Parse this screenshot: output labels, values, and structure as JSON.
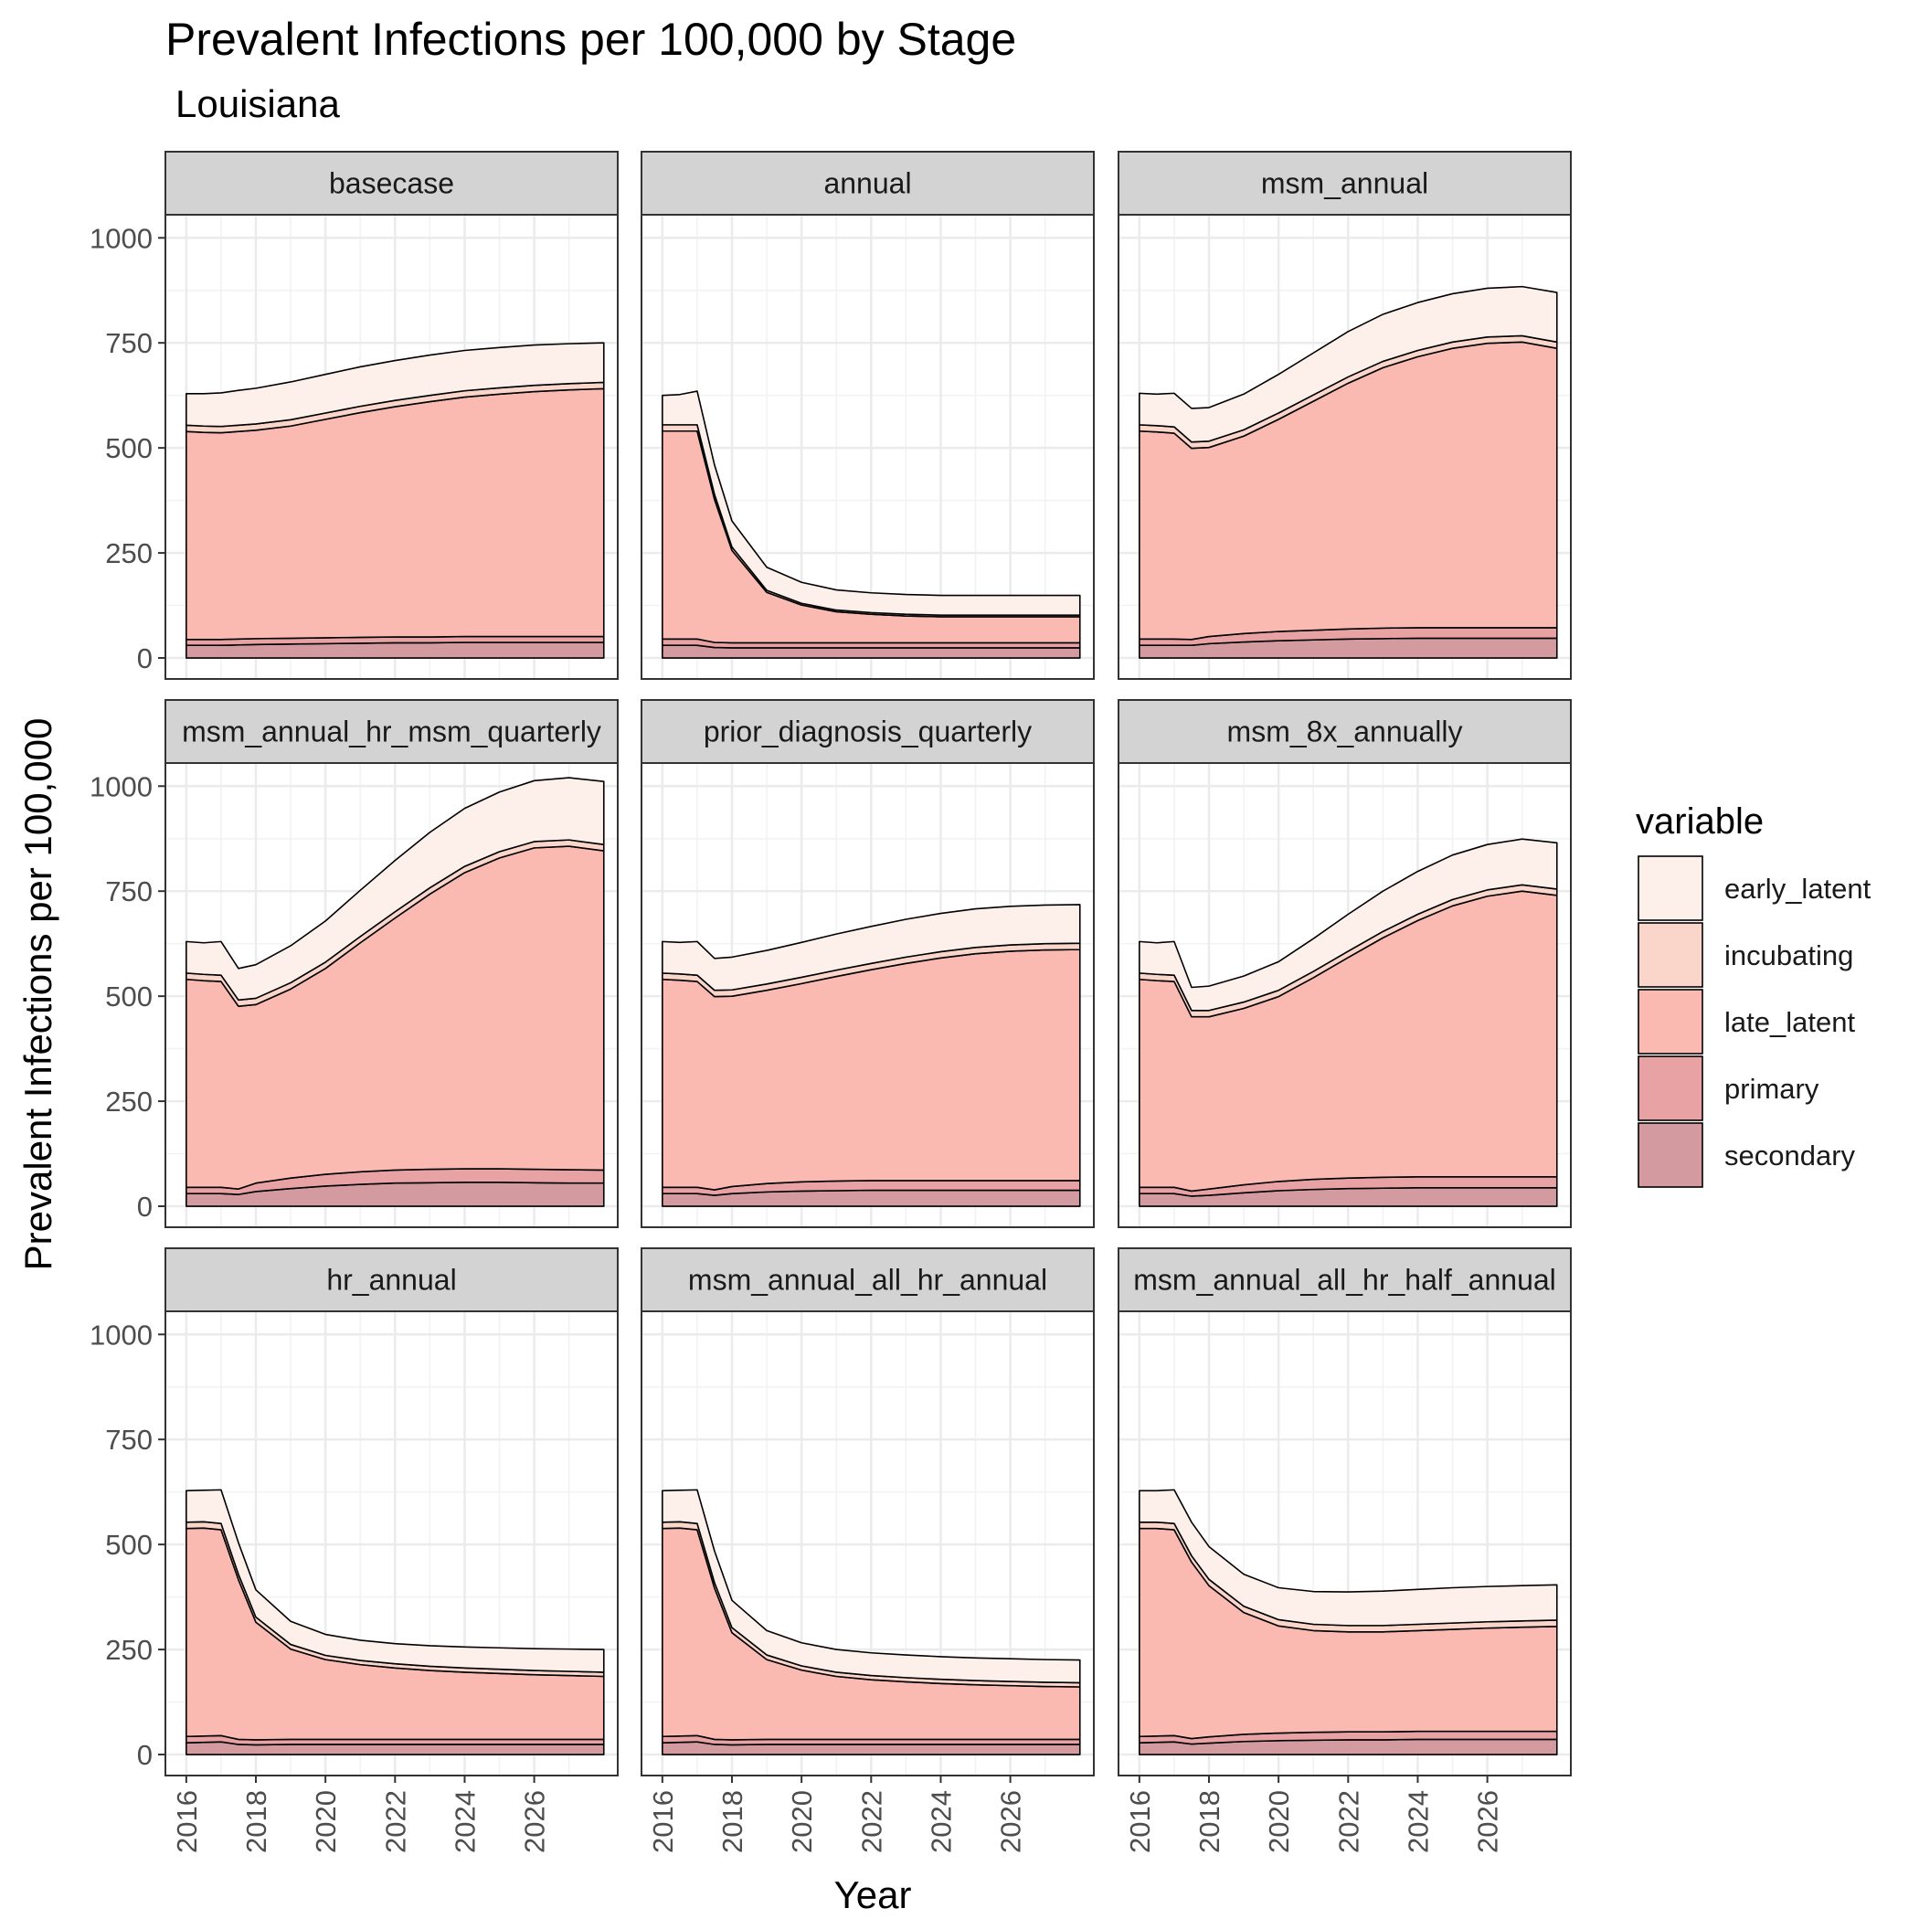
{
  "colors": {
    "secondary": "#d39aa0",
    "primary": "#e9a2a3",
    "late_latent": "#fbbab1",
    "incubating": "#fad5ca",
    "early_latent": "#fdf0ea",
    "strip": "#d3d3d3",
    "grid": "#ebebeb",
    "outline": "#333333"
  },
  "chart_data": {
    "type": "area",
    "stacked": true,
    "title": "Prevalent Infections per 100,000 by Stage",
    "subtitle": "Louisiana",
    "xlabel": "Year",
    "ylabel": "Prevalent Infections per 100,000",
    "xlim": [
      2015.4,
      2028.4
    ],
    "ylim": [
      -50,
      1055
    ],
    "x_ticks": [
      2016,
      2018,
      2020,
      2022,
      2024,
      2026
    ],
    "y_ticks": [
      0,
      250,
      500,
      750,
      1000
    ],
    "grid": true,
    "legend": {
      "title": "variable",
      "position": "right",
      "entries": [
        "early_latent",
        "incubating",
        "late_latent",
        "primary",
        "secondary"
      ]
    },
    "x": [
      2016,
      2016.5,
      2017,
      2017.5,
      2018,
      2019,
      2020,
      2021,
      2022,
      2023,
      2024,
      2025,
      2026,
      2027,
      2028
    ],
    "panels": [
      {
        "name": "basecase",
        "stack_order": [
          "secondary",
          "primary",
          "late_latent",
          "incubating",
          "early_latent"
        ],
        "series": {
          "secondary": [
            30,
            30,
            30,
            31,
            32,
            33,
            34,
            35,
            36,
            36,
            37,
            37,
            37,
            37,
            37
          ],
          "primary": [
            14,
            14,
            14,
            14,
            14,
            14,
            14,
            14,
            14,
            14,
            14,
            14,
            14,
            14,
            14
          ],
          "late_latent": [
            495,
            493,
            492,
            494,
            496,
            505,
            520,
            535,
            548,
            560,
            570,
            577,
            583,
            587,
            590
          ],
          "incubating": [
            15,
            15,
            15,
            15,
            15,
            15,
            15,
            15,
            15,
            15,
            15,
            15,
            15,
            15,
            15
          ],
          "early_latent": [
            75,
            77,
            80,
            83,
            85,
            90,
            92,
            94,
            95,
            96,
            96,
            96,
            96,
            95,
            94
          ]
        }
      },
      {
        "name": "annual",
        "stack_order": [
          "secondary",
          "primary",
          "late_latent",
          "incubating",
          "early_latent"
        ],
        "series": {
          "secondary": [
            30,
            30,
            30,
            25,
            24,
            24,
            24,
            24,
            24,
            24,
            24,
            24,
            24,
            24,
            24
          ],
          "primary": [
            15,
            15,
            15,
            12,
            12,
            12,
            12,
            12,
            12,
            12,
            12,
            12,
            12,
            12,
            12
          ],
          "late_latent": [
            495,
            495,
            495,
            340,
            220,
            120,
            90,
            74,
            68,
            64,
            62,
            62,
            62,
            62,
            62
          ],
          "incubating": [
            15,
            15,
            15,
            12,
            8,
            5,
            4,
            4,
            4,
            4,
            4,
            4,
            4,
            4,
            4
          ],
          "early_latent": [
            70,
            72,
            80,
            70,
            62,
            55,
            50,
            48,
            47,
            47,
            47,
            47,
            47,
            47,
            47
          ]
        }
      },
      {
        "name": "msm_annual",
        "stack_order": [
          "secondary",
          "primary",
          "late_latent",
          "incubating",
          "early_latent"
        ],
        "series": {
          "secondary": [
            30,
            30,
            30,
            30,
            34,
            38,
            41,
            43,
            45,
            46,
            47,
            47,
            47,
            47,
            47
          ],
          "primary": [
            15,
            15,
            15,
            14,
            17,
            20,
            22,
            23,
            24,
            25,
            25,
            25,
            25,
            25,
            25
          ],
          "late_latent": [
            495,
            493,
            490,
            455,
            450,
            470,
            505,
            545,
            585,
            620,
            645,
            665,
            677,
            680,
            665
          ],
          "incubating": [
            15,
            15,
            15,
            15,
            15,
            15,
            15,
            15,
            15,
            15,
            15,
            15,
            15,
            15,
            15
          ],
          "early_latent": [
            75,
            75,
            80,
            80,
            80,
            85,
            92,
            100,
            108,
            112,
            114,
            115,
            116,
            117,
            118
          ]
        }
      },
      {
        "name": "msm_annual_hr_msm_quarterly",
        "stack_order": [
          "secondary",
          "primary",
          "late_latent",
          "incubating",
          "early_latent"
        ],
        "series": {
          "secondary": [
            30,
            30,
            30,
            28,
            35,
            42,
            48,
            52,
            55,
            56,
            57,
            57,
            56,
            55,
            55
          ],
          "primary": [
            15,
            15,
            15,
            13,
            20,
            25,
            28,
            30,
            31,
            32,
            32,
            32,
            32,
            32,
            31
          ],
          "late_latent": [
            495,
            492,
            490,
            435,
            425,
            450,
            490,
            545,
            600,
            655,
            705,
            740,
            765,
            770,
            760
          ],
          "incubating": [
            15,
            15,
            15,
            15,
            15,
            15,
            15,
            15,
            15,
            15,
            15,
            15,
            15,
            15,
            15
          ],
          "early_latent": [
            75,
            75,
            80,
            75,
            80,
            88,
            98,
            110,
            122,
            132,
            138,
            142,
            145,
            148,
            150
          ]
        }
      },
      {
        "name": "prior_diagnosis_quarterly",
        "stack_order": [
          "secondary",
          "primary",
          "late_latent",
          "incubating",
          "early_latent"
        ],
        "series": {
          "secondary": [
            30,
            30,
            30,
            26,
            30,
            34,
            36,
            37,
            38,
            38,
            38,
            38,
            38,
            38,
            38
          ],
          "primary": [
            15,
            15,
            15,
            13,
            17,
            20,
            22,
            23,
            23,
            23,
            23,
            23,
            23,
            23,
            23
          ],
          "late_latent": [
            495,
            493,
            490,
            460,
            453,
            460,
            472,
            487,
            502,
            517,
            530,
            540,
            546,
            549,
            550
          ],
          "incubating": [
            15,
            15,
            15,
            15,
            15,
            15,
            15,
            15,
            15,
            15,
            15,
            15,
            15,
            15,
            15
          ],
          "early_latent": [
            75,
            75,
            80,
            76,
            78,
            80,
            83,
            86,
            88,
            90,
            91,
            92,
            92,
            92,
            92
          ]
        }
      },
      {
        "name": "msm_8x_annually",
        "stack_order": [
          "secondary",
          "primary",
          "late_latent",
          "incubating",
          "early_latent"
        ],
        "series": {
          "secondary": [
            30,
            30,
            30,
            24,
            26,
            32,
            37,
            40,
            42,
            43,
            44,
            44,
            44,
            44,
            44
          ],
          "primary": [
            15,
            15,
            15,
            12,
            15,
            19,
            22,
            24,
            25,
            26,
            26,
            26,
            26,
            26,
            26
          ],
          "late_latent": [
            495,
            492,
            490,
            415,
            410,
            420,
            440,
            480,
            525,
            570,
            610,
            645,
            668,
            680,
            670
          ],
          "incubating": [
            15,
            15,
            15,
            15,
            15,
            15,
            15,
            15,
            15,
            15,
            15,
            15,
            15,
            15,
            15
          ],
          "early_latent": [
            75,
            75,
            80,
            55,
            58,
            62,
            68,
            78,
            88,
            96,
            102,
            106,
            108,
            109,
            110
          ]
        }
      },
      {
        "name": "hr_annual",
        "stack_order": [
          "secondary",
          "primary",
          "late_latent",
          "incubating",
          "early_latent"
        ],
        "series": {
          "secondary": [
            28,
            29,
            30,
            24,
            23,
            24,
            24,
            24,
            24,
            24,
            24,
            24,
            24,
            24,
            24
          ],
          "primary": [
            15,
            15,
            15,
            12,
            12,
            12,
            12,
            12,
            12,
            12,
            12,
            12,
            12,
            12,
            12
          ],
          "late_latent": [
            495,
            495,
            490,
            380,
            280,
            215,
            190,
            178,
            170,
            164,
            160,
            157,
            154,
            152,
            150
          ],
          "incubating": [
            15,
            15,
            15,
            13,
            12,
            11,
            10,
            10,
            10,
            10,
            10,
            10,
            10,
            10,
            10
          ],
          "early_latent": [
            75,
            75,
            80,
            75,
            65,
            55,
            50,
            48,
            48,
            49,
            50,
            51,
            52,
            53,
            54
          ]
        }
      },
      {
        "name": "msm_annual_all_hr_annual",
        "stack_order": [
          "secondary",
          "primary",
          "late_latent",
          "incubating",
          "early_latent"
        ],
        "series": {
          "secondary": [
            28,
            29,
            30,
            24,
            23,
            24,
            24,
            24,
            24,
            24,
            24,
            24,
            24,
            24,
            24
          ],
          "primary": [
            15,
            15,
            15,
            12,
            12,
            12,
            12,
            12,
            12,
            12,
            12,
            12,
            12,
            12,
            12
          ],
          "late_latent": [
            495,
            495,
            490,
            360,
            255,
            190,
            165,
            150,
            142,
            137,
            133,
            130,
            128,
            126,
            125
          ],
          "incubating": [
            15,
            15,
            15,
            13,
            12,
            11,
            10,
            10,
            10,
            10,
            10,
            10,
            10,
            10,
            10
          ],
          "early_latent": [
            75,
            75,
            80,
            75,
            65,
            58,
            55,
            54,
            54,
            54,
            54,
            54,
            54,
            54,
            54
          ]
        }
      },
      {
        "name": "msm_annual_all_hr_half_annual",
        "stack_order": [
          "secondary",
          "primary",
          "late_latent",
          "incubating",
          "early_latent"
        ],
        "series": {
          "secondary": [
            28,
            29,
            30,
            25,
            27,
            31,
            33,
            34,
            35,
            35,
            36,
            36,
            36,
            36,
            36
          ],
          "primary": [
            15,
            15,
            15,
            13,
            15,
            17,
            18,
            19,
            19,
            19,
            19,
            19,
            19,
            19,
            19
          ],
          "late_latent": [
            495,
            494,
            490,
            420,
            360,
            290,
            255,
            242,
            238,
            238,
            240,
            243,
            246,
            248,
            250
          ],
          "incubating": [
            15,
            15,
            15,
            15,
            15,
            15,
            15,
            15,
            15,
            15,
            15,
            15,
            15,
            15,
            15
          ],
          "early_latent": [
            75,
            75,
            80,
            80,
            78,
            76,
            76,
            78,
            80,
            82,
            83,
            84,
            84,
            84,
            84
          ]
        }
      }
    ]
  }
}
